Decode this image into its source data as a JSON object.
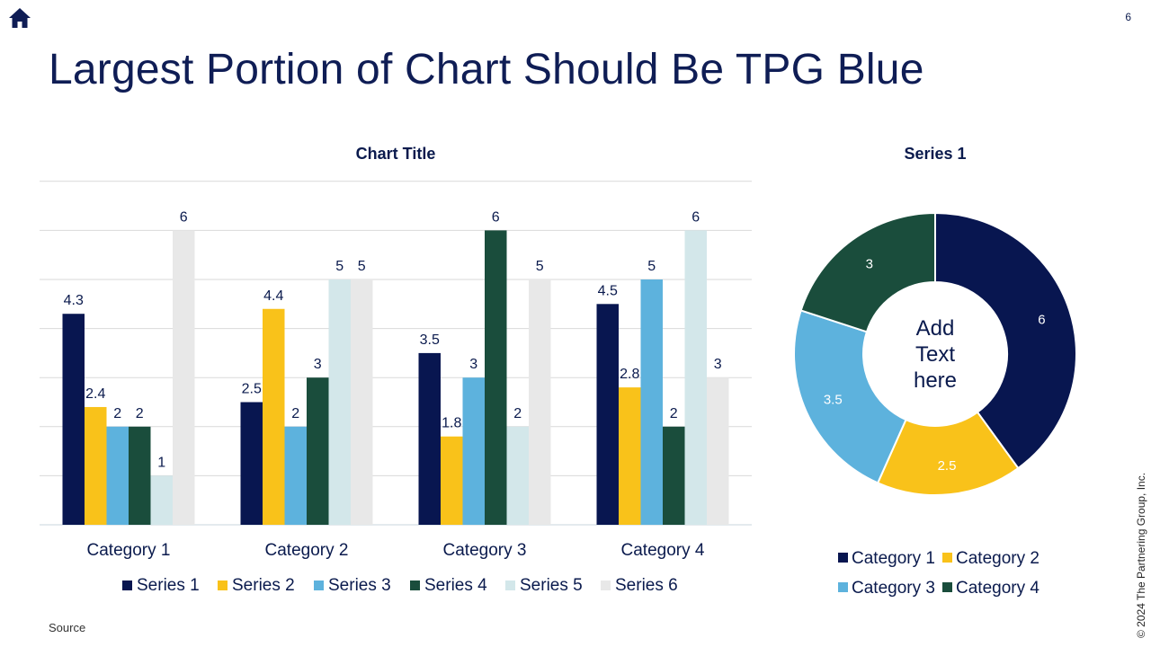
{
  "page": {
    "title": "Largest Portion of Chart Should Be TPG Blue",
    "page_number": "6",
    "source": "Source",
    "copyright": "© 2024 The Partnering Group, Inc.",
    "home_icon": "home-icon"
  },
  "colors": {
    "series": [
      "#081650",
      "#f9c21a",
      "#5db2dd",
      "#1a4d3c",
      "#d3e7ea",
      "#e8e8e8"
    ],
    "text": "#0a1a4d"
  },
  "chart_data": [
    {
      "type": "bar",
      "title": "Chart Title",
      "categories": [
        "Category 1",
        "Category 2",
        "Category 3",
        "Category 4"
      ],
      "series": [
        {
          "name": "Series 1",
          "values": [
            4.3,
            2.5,
            3.5,
            4.5
          ]
        },
        {
          "name": "Series 2",
          "values": [
            2.4,
            4.4,
            1.8,
            2.8
          ]
        },
        {
          "name": "Series 3",
          "values": [
            2,
            2,
            3,
            5
          ]
        },
        {
          "name": "Series 4",
          "values": [
            2,
            3,
            6,
            2
          ]
        },
        {
          "name": "Series 5",
          "values": [
            1,
            5,
            2,
            6
          ]
        },
        {
          "name": "Series 6",
          "values": [
            6,
            5,
            5,
            3
          ]
        }
      ],
      "ylim": [
        0,
        7
      ],
      "grid": true,
      "legend": "bottom"
    },
    {
      "type": "pie",
      "title": "Series 1",
      "donut": true,
      "center_text": [
        "Add",
        "Text",
        "here"
      ],
      "labels": [
        "Category 1",
        "Category 2",
        "Category 3",
        "Category 4"
      ],
      "values": [
        6,
        2.5,
        3.5,
        3
      ],
      "legend": "bottom"
    }
  ]
}
